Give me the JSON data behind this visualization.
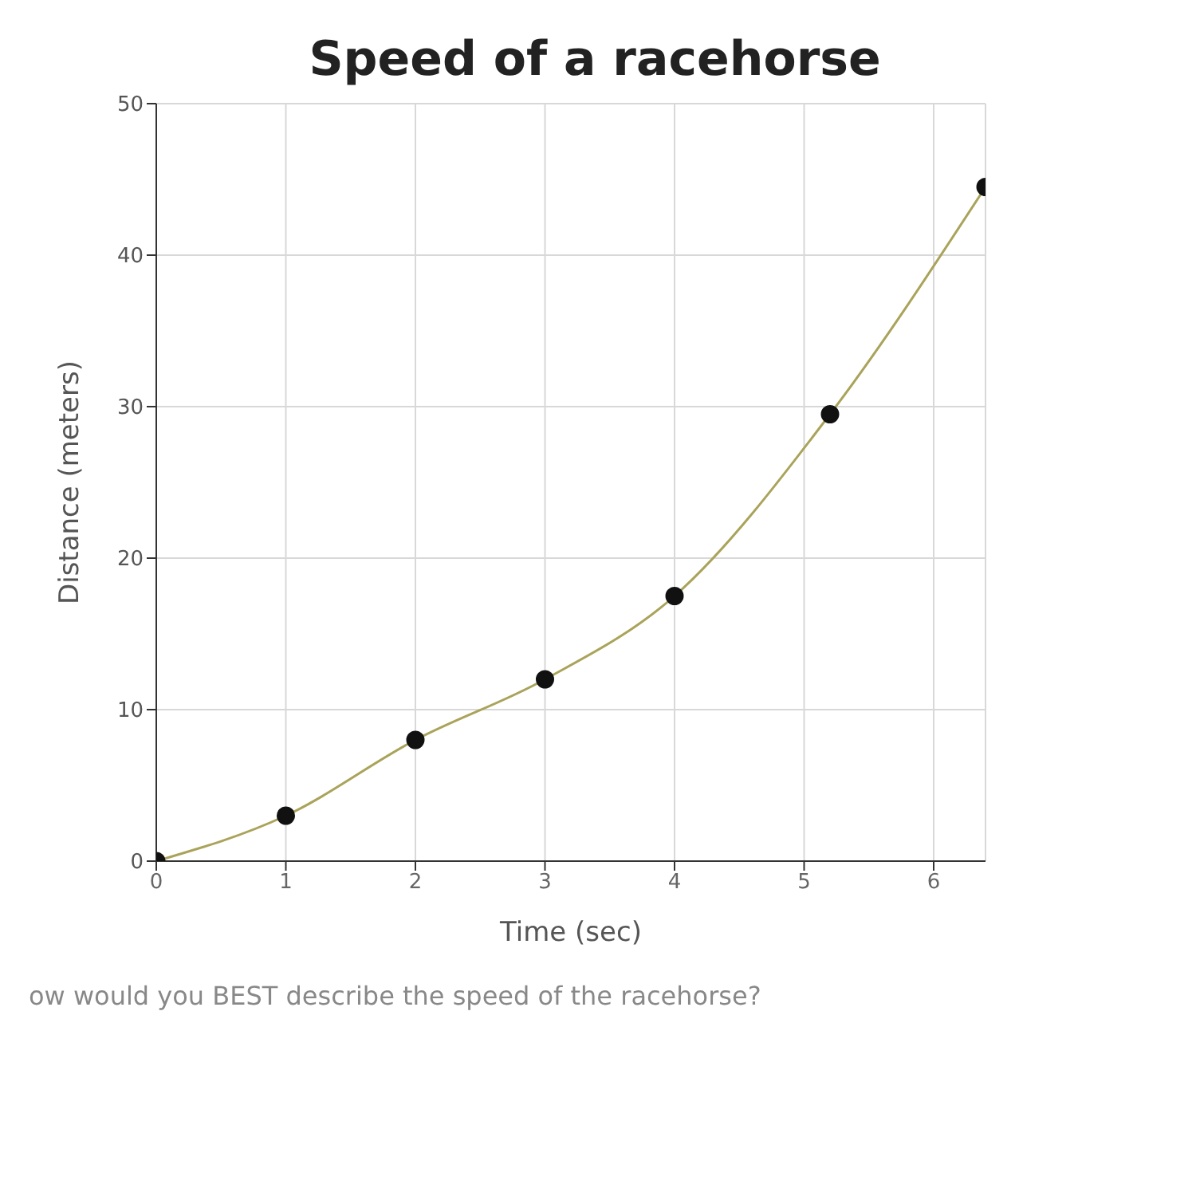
{
  "chart_data": {
    "type": "line",
    "title": "Speed of a racehorse",
    "xlabel": "Time (sec)",
    "ylabel": "Distance (meters)",
    "x": [
      0,
      1,
      2,
      3,
      4,
      5.2,
      6.4
    ],
    "series": [
      {
        "color": "#aaa35a",
        "values": [
          0,
          3,
          8,
          12,
          17.5,
          29.5,
          44.5
        ]
      }
    ],
    "xlim": [
      0,
      6.4
    ],
    "xticks": [
      0,
      1,
      2,
      3,
      4,
      5,
      6
    ],
    "ylim": [
      0,
      50
    ],
    "yticks": [
      0,
      10,
      20,
      30,
      40,
      50
    ],
    "grid": true,
    "marker": "circle",
    "annotations": [
      "ow would you BEST describe the speed of the racehorse?"
    ]
  }
}
